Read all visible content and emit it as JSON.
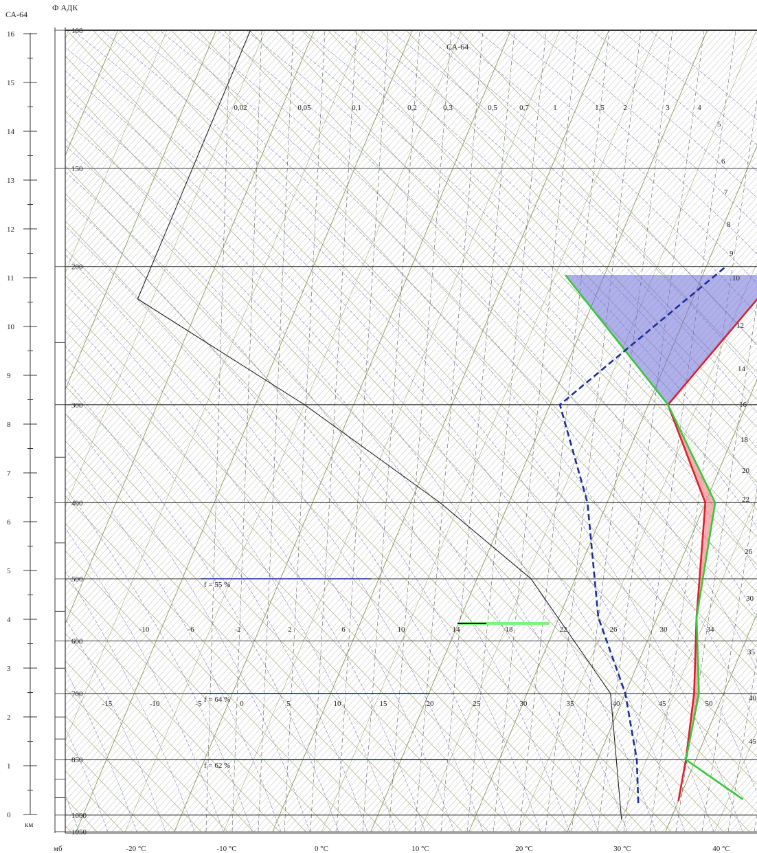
{
  "chart_data": {
    "type": "line",
    "diagram": "aerological diagram (skew-T)",
    "title_left": "СА-64",
    "title_main": "Ф АДК",
    "height_unit": "км",
    "pressure_unit": "мб",
    "height_ticks": [
      "0",
      "1",
      "2",
      "3",
      "4",
      "5",
      "6",
      "7",
      "8",
      "9",
      "10",
      "11",
      "12",
      "13",
      "14",
      "15",
      "16"
    ],
    "pressure_levels": [
      {
        "p": 100,
        "label": "100"
      },
      {
        "p": 150,
        "label": "150"
      },
      {
        "p": 200,
        "label": "200"
      },
      {
        "p": 300,
        "label": "300"
      },
      {
        "p": 400,
        "label": "400"
      },
      {
        "p": 500,
        "label": "500"
      },
      {
        "p": 600,
        "label": "600"
      },
      {
        "p": 700,
        "label": "700"
      },
      {
        "p": 850,
        "label": "850"
      },
      {
        "p": 1000,
        "label": "1000"
      },
      {
        "p": 1050,
        "label": "1050"
      }
    ],
    "temperature_ticks": [
      "-20 °C",
      "-10 °C",
      "0 °C",
      "10 °C",
      "20 °C",
      "30 °C",
      "40 °C"
    ],
    "mixing_ratio_labels_top": [
      "0,02",
      "0,05",
      "0,1",
      "0,2",
      "0,3",
      "0,5",
      "0,7",
      "1",
      "1,5",
      "2",
      "3",
      "4"
    ],
    "mixing_ratio_labels_right": [
      "5",
      "6",
      "7",
      "8",
      "9",
      "10",
      "12",
      "14",
      "16",
      "18",
      "20",
      "22",
      "26",
      "30",
      "35",
      "40",
      "45"
    ],
    "adiabat_labels_row1": [
      "-10",
      "-6",
      "-2",
      "2",
      "6",
      "10",
      "14",
      "18",
      "22",
      "26",
      "30",
      "34"
    ],
    "adiabat_labels_row2": [
      "-15",
      "-10",
      "-5",
      "0",
      "5",
      "10",
      "15",
      "20",
      "25",
      "30",
      "35",
      "40",
      "45",
      "50"
    ],
    "standard_atmosphere_label": "СА-64",
    "humidity_labels": [
      {
        "p": 500,
        "label": "f = 55 %"
      },
      {
        "p": 700,
        "label": "f = 64 %"
      },
      {
        "p": 850,
        "label": "f = 62 %"
      }
    ],
    "series": [
      {
        "name": "temperature",
        "color": "#dd1f2f",
        "style": "solid",
        "points": [
          [
            20,
            960
          ],
          [
            19,
            850
          ],
          [
            17,
            700
          ],
          [
            14,
            560
          ],
          [
            10,
            400
          ],
          [
            2,
            300
          ],
          [
            8,
            200
          ]
        ]
      },
      {
        "name": "state curve",
        "color": "#37c83a",
        "style": "solid",
        "points": [
          [
            26.5,
            955
          ],
          [
            19,
            850
          ],
          [
            17.5,
            700
          ],
          [
            14,
            560
          ],
          [
            11,
            400
          ],
          [
            2,
            300
          ],
          [
            -14,
            205
          ]
        ]
      },
      {
        "name": "dew point",
        "color": "#1d2e9a",
        "style": "dashed",
        "points": [
          [
            16,
            965
          ],
          [
            14,
            850
          ],
          [
            10,
            700
          ],
          [
            4,
            560
          ],
          [
            -2,
            400
          ],
          [
            -9,
            300
          ],
          [
            2,
            200
          ]
        ]
      },
      {
        "name": "СА-64",
        "color": "#202020",
        "style": "solid",
        "points": [
          [
            15,
            1013
          ],
          [
            8.5,
            700
          ],
          [
            -4.5,
            500
          ],
          [
            -17,
            400
          ],
          [
            -35,
            300
          ],
          [
            -56.5,
            220
          ],
          [
            -56.5,
            100
          ]
        ]
      }
    ],
    "condensation_level_marker": {
      "p": 570,
      "color": "#80f080"
    },
    "shaded_areas": [
      {
        "name": "positive energy",
        "color": "#f08080"
      },
      {
        "name": "negative energy",
        "color": "#7070d8"
      }
    ]
  }
}
